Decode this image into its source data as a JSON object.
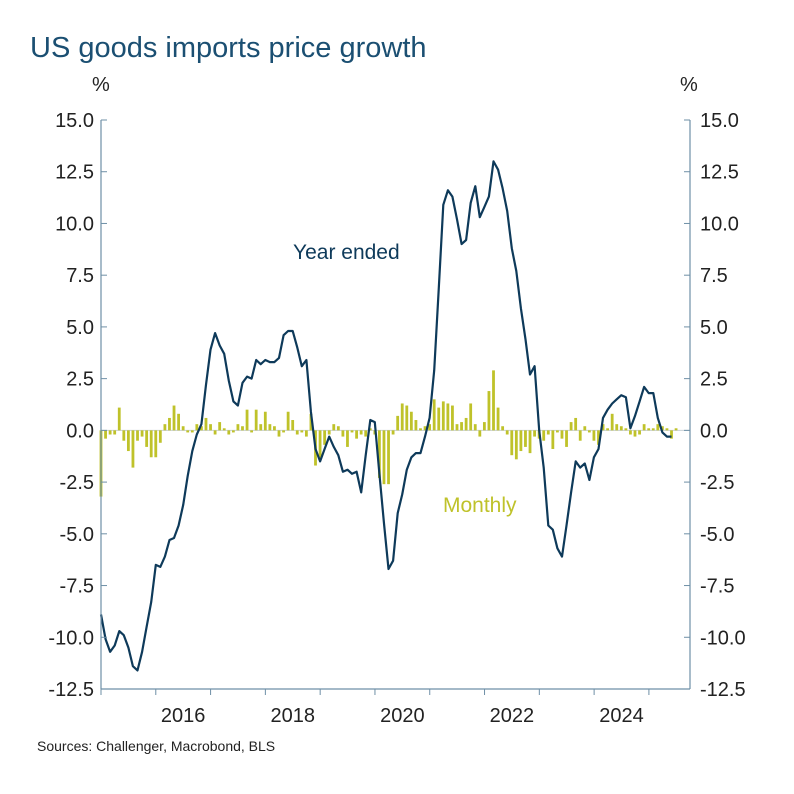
{
  "title": "US goods imports price growth",
  "unit_left": "%",
  "unit_right": "%",
  "source": "Sources: Challenger, Macrobond, BLS",
  "colors": {
    "year_ended": "#0e3a5a",
    "monthly": "#bfc22a",
    "axis": "#6e8fa6"
  },
  "chart_data": {
    "type": "bar+line",
    "title": "US goods imports price growth",
    "ylabel": "%",
    "ylim": [
      -12.5,
      15.0
    ],
    "yticks": [
      -12.5,
      -10.0,
      -7.5,
      -5.0,
      -2.5,
      0.0,
      2.5,
      5.0,
      7.5,
      10.0,
      12.5,
      15.0
    ],
    "ytick_labels": [
      "-12.5",
      "-10.0",
      "-7.5",
      "-5.0",
      "-2.5",
      "0.0",
      "2.5",
      "5.0",
      "7.5",
      "10.0",
      "12.5",
      "15.0"
    ],
    "xlim": [
      2015.0,
      2025.75
    ],
    "xticks": [
      2016,
      2018,
      2020,
      2022,
      2024
    ],
    "xtick_labels": [
      "2016",
      "2018",
      "2020",
      "2022",
      "2024"
    ],
    "annotations": {
      "year_ended": "Year ended",
      "monthly": "Monthly"
    },
    "series": [
      {
        "name": "Year ended",
        "type": "line",
        "start": 2015.0,
        "step": 0.0833,
        "values": [
          -8.9,
          -10.1,
          -10.7,
          -10.4,
          -9.7,
          -9.9,
          -10.5,
          -11.4,
          -11.6,
          -10.7,
          -9.5,
          -8.3,
          -6.5,
          -6.6,
          -6.1,
          -5.3,
          -5.2,
          -4.6,
          -3.6,
          -2.2,
          -1.0,
          -0.2,
          0.3,
          2.2,
          3.9,
          4.7,
          4.1,
          3.7,
          2.4,
          1.4,
          1.2,
          2.3,
          2.6,
          2.5,
          3.4,
          3.2,
          3.4,
          3.3,
          3.3,
          3.5,
          4.6,
          4.8,
          4.8,
          4.0,
          3.1,
          3.4,
          0.9,
          -0.9,
          -1.5,
          -0.9,
          -0.3,
          -0.8,
          -1.2,
          -2.0,
          -1.9,
          -2.1,
          -2.0,
          -3.0,
          -1.2,
          0.5,
          0.4,
          -2.1,
          -4.5,
          -6.7,
          -6.3,
          -4.0,
          -3.1,
          -1.9,
          -1.3,
          -1.1,
          -1.1,
          -0.3,
          0.6,
          2.9,
          6.8,
          10.9,
          11.6,
          11.3,
          10.2,
          9.0,
          9.2,
          11.0,
          11.8,
          10.3,
          10.8,
          11.3,
          13.0,
          12.6,
          11.7,
          10.6,
          8.8,
          7.7,
          5.9,
          4.4,
          2.7,
          3.1,
          0.0,
          -1.8,
          -4.6,
          -4.8,
          -5.7,
          -6.1,
          -4.6,
          -3.0,
          -1.5,
          -1.8,
          -1.6,
          -2.4,
          -1.3,
          -0.9,
          0.6,
          1.0,
          1.3,
          1.5,
          1.7,
          1.6,
          0.1,
          0.7,
          1.4,
          2.1,
          1.8,
          1.8,
          0.6,
          -0.1,
          -0.3,
          -0.3
        ]
      },
      {
        "name": "Monthly",
        "type": "bar",
        "start": 2015.0,
        "step": 0.0833,
        "values": [
          -3.2,
          -0.4,
          -0.2,
          -0.2,
          1.1,
          -0.5,
          -1.0,
          -1.8,
          -0.5,
          -0.3,
          -0.8,
          -1.3,
          -1.3,
          -0.6,
          0.3,
          0.6,
          1.2,
          0.8,
          0.2,
          -0.1,
          -0.1,
          0.3,
          0.2,
          0.6,
          0.3,
          -0.2,
          0.4,
          0.1,
          -0.2,
          -0.1,
          0.3,
          0.2,
          1.0,
          -0.1,
          1.0,
          0.3,
          0.9,
          0.3,
          0.2,
          -0.3,
          -0.1,
          0.9,
          0.5,
          -0.2,
          -0.1,
          -0.3,
          0.8,
          -1.7,
          -1.4,
          -0.7,
          -0.2,
          0.3,
          0.2,
          -0.3,
          -0.8,
          -0.1,
          -0.4,
          -0.2,
          -0.3,
          0.1,
          -0.2,
          -2.3,
          -2.6,
          -2.6,
          -0.2,
          0.7,
          1.3,
          1.2,
          0.9,
          0.5,
          0.1,
          0.2,
          0.3,
          1.5,
          1.1,
          1.4,
          1.3,
          1.2,
          0.3,
          0.4,
          0.6,
          1.3,
          0.3,
          -0.3,
          0.4,
          1.9,
          2.9,
          1.1,
          0.2,
          -0.2,
          -1.2,
          -1.4,
          -1.0,
          -0.8,
          -1.1,
          -0.3,
          -0.4,
          -0.5,
          -0.2,
          -0.9,
          -0.1,
          -0.4,
          -0.8,
          0.4,
          0.6,
          -0.5,
          0.2,
          -0.1,
          -0.5,
          -0.7,
          0.3,
          0.1,
          0.8,
          0.3,
          0.2,
          0.1,
          -0.2,
          -0.3,
          -0.2,
          0.3,
          0.1,
          0.1,
          0.3,
          0.2,
          0.1,
          -0.4,
          0.1
        ]
      }
    ]
  }
}
